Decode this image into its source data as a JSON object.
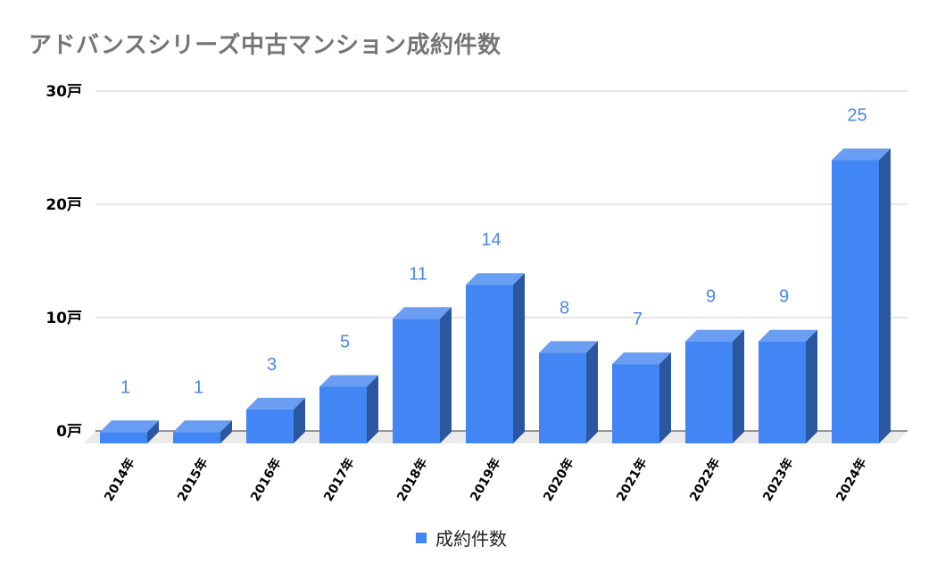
{
  "chart_data": {
    "type": "bar",
    "title": "アドバンスシリーズ中古マンション成約件数",
    "xlabel": "",
    "ylabel": "",
    "categories": [
      "2014年",
      "2015年",
      "2016年",
      "2017年",
      "2018年",
      "2019年",
      "2020年",
      "2021年",
      "2022年",
      "2023年",
      "2024年"
    ],
    "series": [
      {
        "name": "成約件数",
        "values": [
          1,
          1,
          3,
          5,
          11,
          14,
          8,
          7,
          9,
          9,
          25
        ],
        "color": "#4285f4"
      }
    ],
    "data_labels": [
      "1",
      "1",
      "3",
      "5",
      "11",
      "14",
      "8",
      "7",
      "9",
      "9",
      "25"
    ],
    "y_ticks": [
      "0戸",
      "10戸",
      "20戸",
      "30戸"
    ],
    "ylim": [
      0,
      30
    ],
    "grid": true,
    "legend_position": "bottom",
    "style": "3d-bar"
  },
  "legend": {
    "label": "成約件数"
  }
}
